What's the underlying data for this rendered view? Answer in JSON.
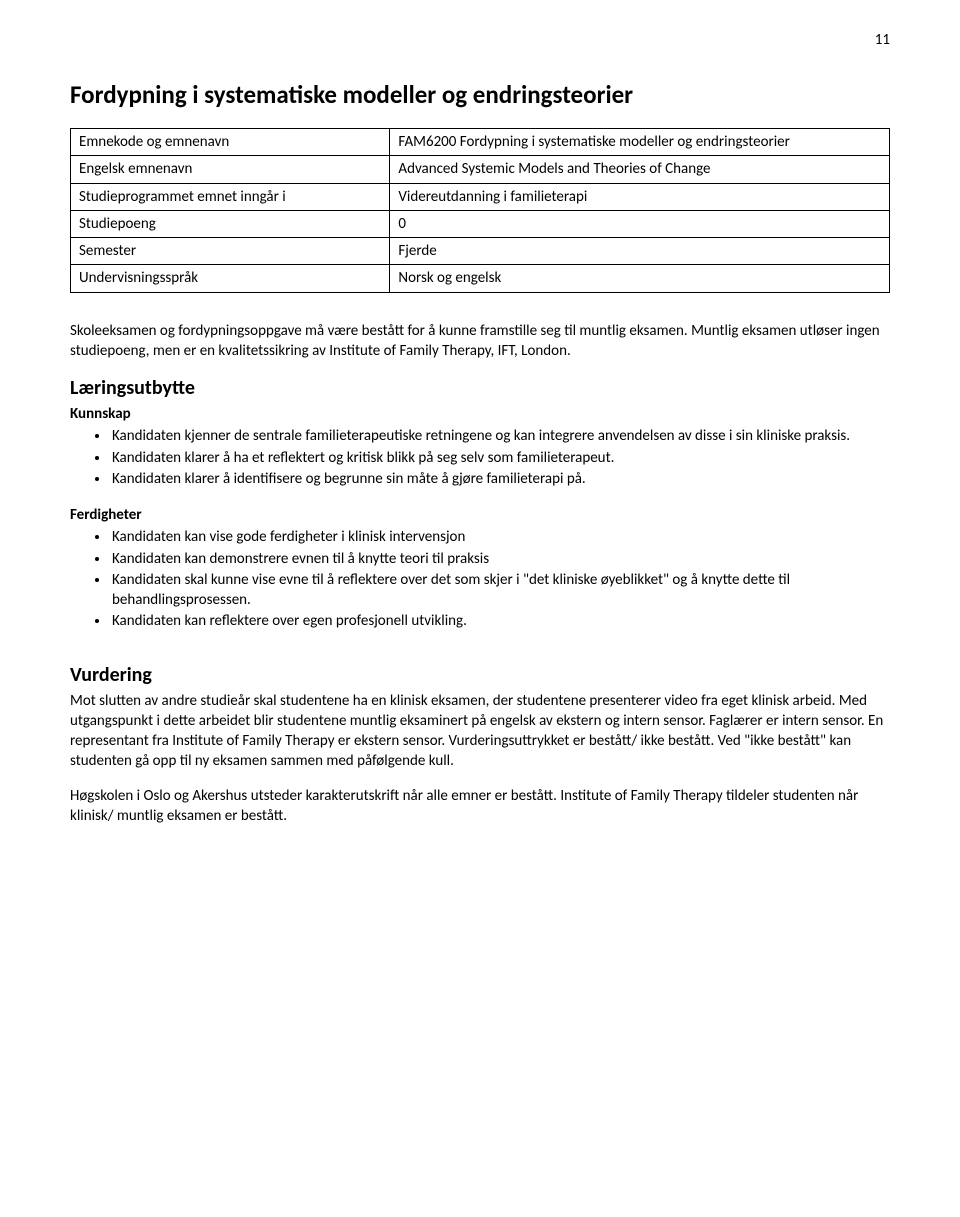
{
  "page_number": "11",
  "title": "Fordypning i systematiske modeller og endringsteorier",
  "info_table": {
    "rows": [
      {
        "label": "Emnekode og emnenavn",
        "value": "FAM6200 Fordypning i systematiske modeller og endringsteorier"
      },
      {
        "label": "Engelsk emnenavn",
        "value": "Advanced Systemic Models and Theories of Change"
      },
      {
        "label": "Studieprogrammet emnet inngår i",
        "value": "Videreutdanning i familieterapi"
      },
      {
        "label": "Studiepoeng",
        "value": "0"
      },
      {
        "label": "Semester",
        "value": "Fjerde"
      },
      {
        "label": "Undervisningsspråk",
        "value": "Norsk og engelsk"
      }
    ]
  },
  "intro_para": "Skoleeksamen og fordypningsoppgave må være bestått for å kunne framstille seg til muntlig eksamen. Muntlig eksamen utløser ingen studiepoeng, men er en kvalitetssikring av Institute of Family Therapy, IFT, London.",
  "laeringsutbytte": {
    "heading": "Læringsutbytte",
    "kunnskap": {
      "heading": "Kunnskap",
      "items": [
        "Kandidaten kjenner de sentrale familieterapeutiske retningene og kan integrere anvendelsen av disse i sin kliniske praksis.",
        "Kandidaten klarer å ha et reflektert og kritisk blikk på seg selv som familieterapeut.",
        "Kandidaten klarer å identifisere og begrunne sin måte å gjøre familieterapi på."
      ]
    },
    "ferdigheter": {
      "heading": "Ferdigheter",
      "items": [
        "Kandidaten kan vise gode ferdigheter i klinisk intervensjon",
        "Kandidaten kan demonstrere evnen til å knytte teori til praksis",
        "Kandidaten skal kunne vise evne til å reflektere over det som skjer i \"det kliniske øyeblikket\" og å knytte dette til behandlingsprosessen.",
        "Kandidaten kan reflektere over egen profesjonell utvikling."
      ]
    }
  },
  "vurdering": {
    "heading": "Vurdering",
    "para1": "Mot slutten av andre studieår skal studentene ha en klinisk eksamen, der studentene presenterer video fra eget klinisk arbeid. Med utgangspunkt i dette arbeidet blir studentene muntlig eksaminert på engelsk av ekstern og intern sensor. Faglærer er intern sensor. En representant fra Institute of Family Therapy er ekstern sensor. Vurderingsuttrykket er bestått/ ikke bestått. Ved \"ikke bestått\" kan studenten gå opp til ny eksamen sammen med påfølgende kull.",
    "para2": "Høgskolen i Oslo og Akershus utsteder karakterutskrift når alle emner er bestått. Institute of Family Therapy tildeler studenten når klinisk/ muntlig eksamen er bestått."
  }
}
